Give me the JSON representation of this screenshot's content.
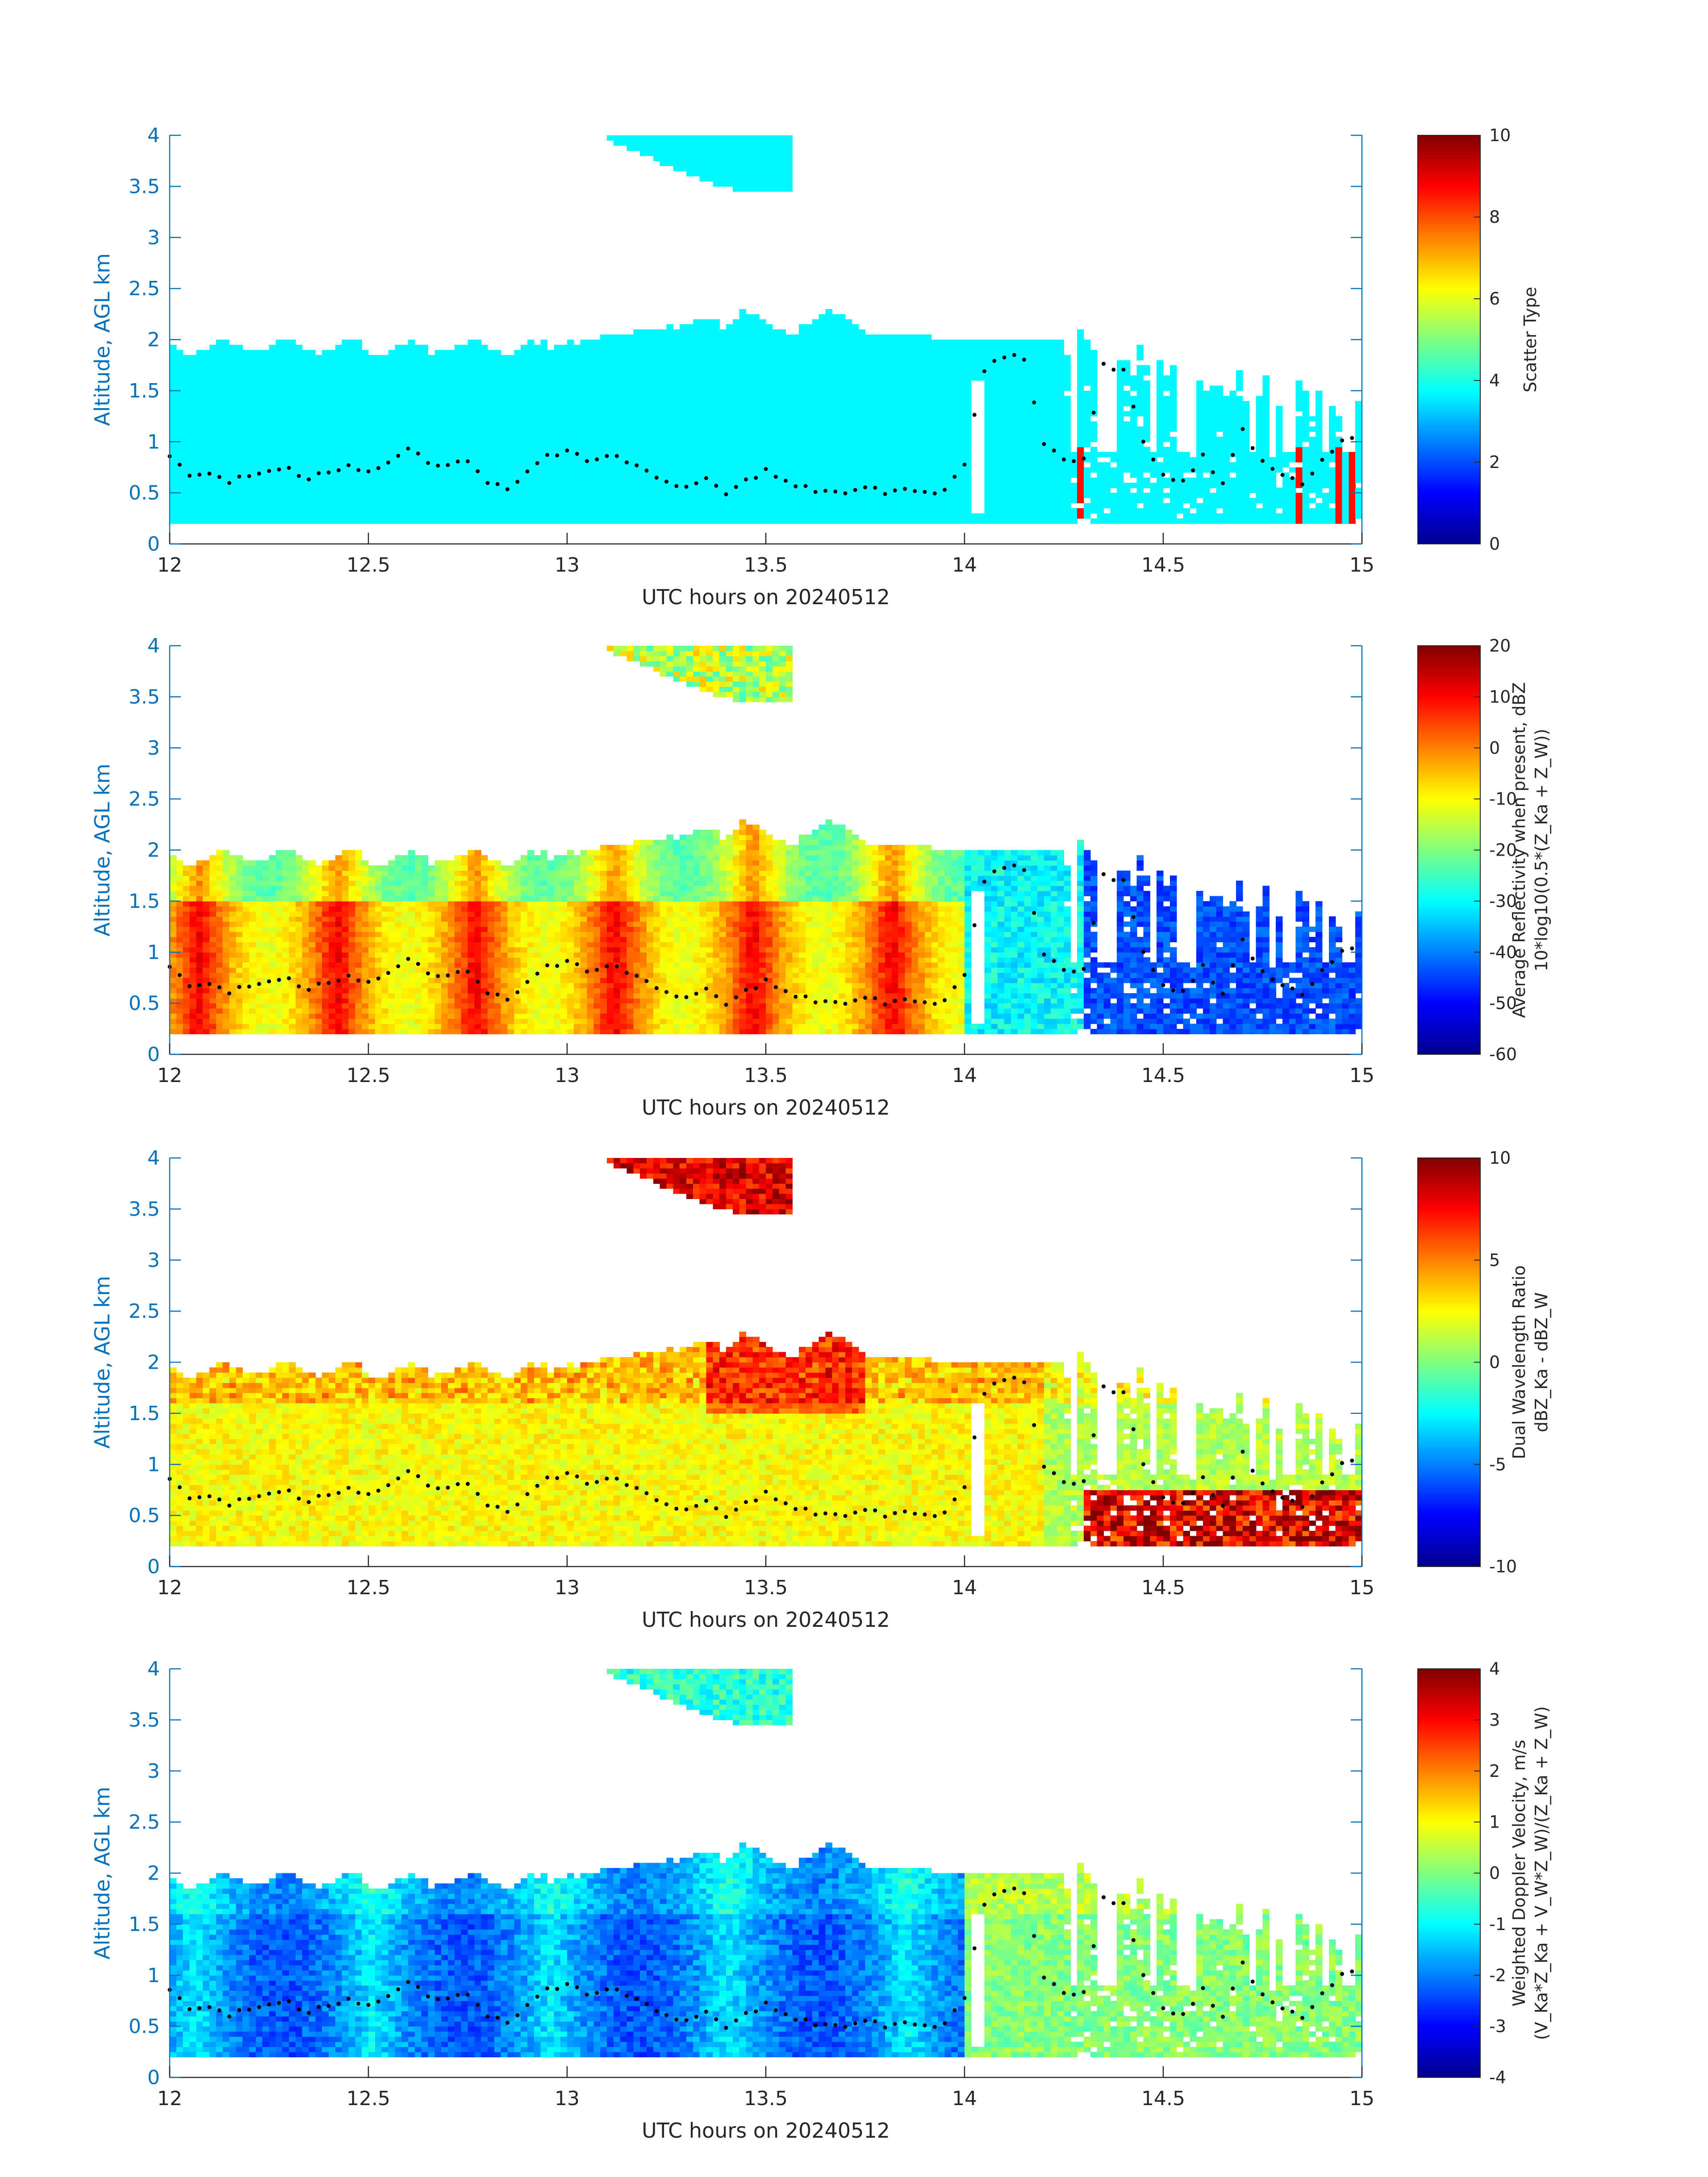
{
  "palette": {
    "jet": [
      "#00008f",
      "#0000ff",
      "#0080ff",
      "#00ffff",
      "#80ff80",
      "#ffff00",
      "#ff8000",
      "#ff0000",
      "#800000"
    ],
    "axis_blue": "#0072bd",
    "axis_black": "#262626"
  },
  "chart_data": [
    {
      "type": "heatmap",
      "xlabel": "UTC hours on 20240512",
      "ylabel": "Altitude, AGL km",
      "xlim": [
        12,
        15
      ],
      "ylim": [
        0,
        4
      ],
      "xticks": [
        "12",
        "12.5",
        "13",
        "13.5",
        "14",
        "14.5",
        "15"
      ],
      "yticks": [
        "0",
        "0.5",
        "1",
        "1.5",
        "2",
        "2.5",
        "3",
        "3.5",
        "4"
      ],
      "colorbar": {
        "label": [
          "Scatter Type"
        ],
        "range": [
          0,
          10
        ],
        "ticks": [
          "0",
          "2",
          "4",
          "6",
          "8",
          "10"
        ]
      },
      "field": "scatter_type",
      "grid": false
    },
    {
      "type": "heatmap",
      "xlabel": "UTC hours on 20240512",
      "ylabel": "Altitude, AGL km",
      "xlim": [
        12,
        15
      ],
      "ylim": [
        0,
        4
      ],
      "xticks": [
        "12",
        "12.5",
        "13",
        "13.5",
        "14",
        "14.5",
        "15"
      ],
      "yticks": [
        "0",
        "0.5",
        "1",
        "1.5",
        "2",
        "2.5",
        "3",
        "3.5",
        "4"
      ],
      "colorbar": {
        "label": [
          "Average Reflectivity when present, dBZ",
          "10*log10(0.5*(Z_Ka + Z_W))"
        ],
        "range": [
          -60,
          20
        ],
        "ticks": [
          "-60",
          "-50",
          "-40",
          "-30",
          "-20",
          "-10",
          "0",
          "10",
          "20"
        ]
      },
      "field": "reflectivity",
      "grid": false
    },
    {
      "type": "heatmap",
      "xlabel": "UTC hours on 20240512",
      "ylabel": "Altitude, AGL km",
      "xlim": [
        12,
        15
      ],
      "ylim": [
        0,
        4
      ],
      "xticks": [
        "12",
        "12.5",
        "13",
        "13.5",
        "14",
        "14.5",
        "15"
      ],
      "yticks": [
        "0",
        "0.5",
        "1",
        "1.5",
        "2",
        "2.5",
        "3",
        "3.5",
        "4"
      ],
      "colorbar": {
        "label": [
          "Dual Wavelength Ratio",
          "dBZ_Ka - dBZ_W"
        ],
        "range": [
          -10,
          10
        ],
        "ticks": [
          "-10",
          "-5",
          "0",
          "5",
          "10"
        ]
      },
      "field": "dwr",
      "grid": false
    },
    {
      "type": "heatmap",
      "xlabel": "UTC hours on 20240512",
      "ylabel": "Altitude, AGL km",
      "xlim": [
        12,
        15
      ],
      "ylim": [
        0,
        4
      ],
      "xticks": [
        "12",
        "12.5",
        "13",
        "13.5",
        "14",
        "14.5",
        "15"
      ],
      "yticks": [
        "0",
        "0.5",
        "1",
        "1.5",
        "2",
        "2.5",
        "3",
        "3.5",
        "4"
      ],
      "colorbar": {
        "label": [
          "Weighted Doppler Velocity, m/s",
          "(V_Ka*Z_Ka + V_W*Z_W)/(Z_Ka + Z_W)"
        ],
        "range": [
          -4,
          4
        ],
        "ticks": [
          "-4",
          "-3",
          "-2",
          "-1",
          "0",
          "1",
          "2",
          "3",
          "4"
        ]
      },
      "field": "velocity",
      "grid": false
    }
  ],
  "cloud_base_km": {
    "x": [
      12.0,
      12.05,
      12.1,
      12.15,
      12.2,
      12.25,
      12.3,
      12.35,
      12.4,
      12.45,
      12.5,
      12.55,
      12.6,
      12.65,
      12.7,
      12.75,
      12.8,
      12.85,
      12.9,
      12.95,
      13.0,
      13.05,
      13.1,
      13.15,
      13.2,
      13.25,
      13.3,
      13.35,
      13.4,
      13.45,
      13.5,
      13.55,
      13.6,
      13.65,
      13.7,
      13.75,
      13.8,
      13.85,
      13.9,
      13.95,
      14.0,
      14.05,
      14.1,
      14.15,
      14.2,
      14.25,
      14.3,
      14.35,
      14.4,
      14.45,
      14.5,
      14.55,
      14.6,
      14.65,
      14.7,
      14.75,
      14.8,
      14.85,
      14.9,
      14.95,
      15.0
    ],
    "y": [
      0.88,
      0.65,
      0.7,
      0.62,
      0.68,
      0.7,
      0.72,
      0.65,
      0.7,
      0.75,
      0.72,
      0.78,
      0.95,
      0.8,
      0.75,
      0.82,
      0.62,
      0.52,
      0.72,
      0.85,
      0.92,
      0.8,
      0.88,
      0.8,
      0.7,
      0.6,
      0.55,
      0.62,
      0.48,
      0.62,
      0.72,
      0.6,
      0.55,
      0.5,
      0.52,
      0.55,
      0.5,
      0.55,
      0.5,
      0.52,
      0.8,
      1.7,
      1.85,
      1.8,
      1.0,
      0.85,
      0.82,
      1.75,
      1.7,
      1.0,
      0.7,
      0.6,
      0.85,
      0.6,
      1.1,
      0.8,
      0.7,
      0.6,
      0.8,
      1.0,
      1.05
    ]
  }
}
